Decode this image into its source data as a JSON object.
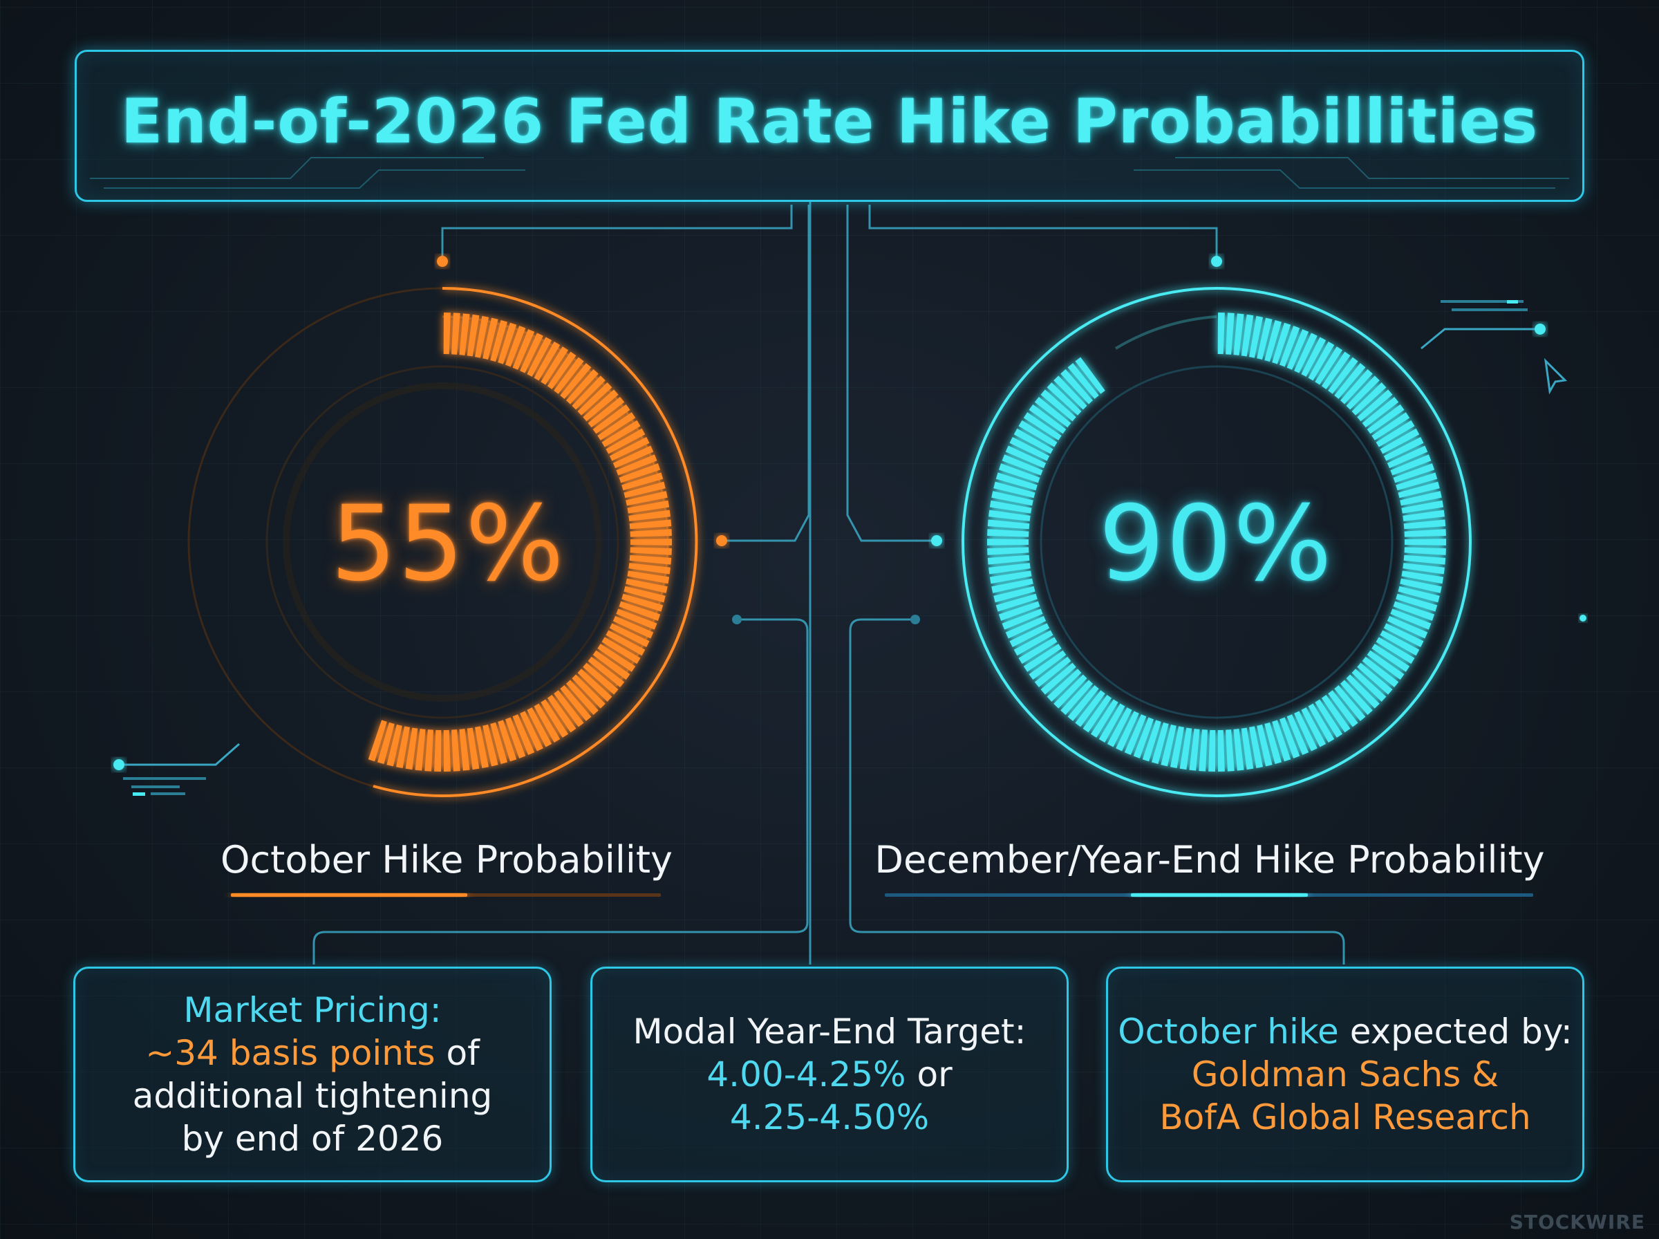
{
  "title": "End-of-2026 Fed Rate Hike Probabillities",
  "colors": {
    "oct_accent": "#ff8a28",
    "dec_accent": "#48eaf2",
    "frame": "#2ec8e6",
    "background": "#121a23"
  },
  "chart_data": {
    "type": "gauge",
    "title": "End-of-2026 Fed Rate Hike Probabillities",
    "unit": "%",
    "range": [
      0,
      100
    ],
    "series": [
      {
        "name": "October Hike Probability",
        "value": 55,
        "display": "55%",
        "color": "#ff8a28"
      },
      {
        "name": "December/Year-End Hike Probability",
        "value": 90,
        "display": "90%",
        "color": "#48eaf2"
      }
    ]
  },
  "cards": [
    {
      "line1": "Market Pricing:",
      "line2_highlight": "~34 basis points",
      "line2_rest": " of",
      "line3": "additional tightening",
      "line4": "by end of 2026"
    },
    {
      "line1": "Modal Year-End Target:",
      "line2_highlight": "4.00-4.25%",
      "line2_rest": " or",
      "line3": "4.25-4.50%"
    },
    {
      "line1_highlight": "October hike",
      "line1_rest": " expected by:",
      "line2": "Goldman Sachs &",
      "line3": "BofA Global Research"
    }
  ],
  "watermark": "STOCKWIRE"
}
